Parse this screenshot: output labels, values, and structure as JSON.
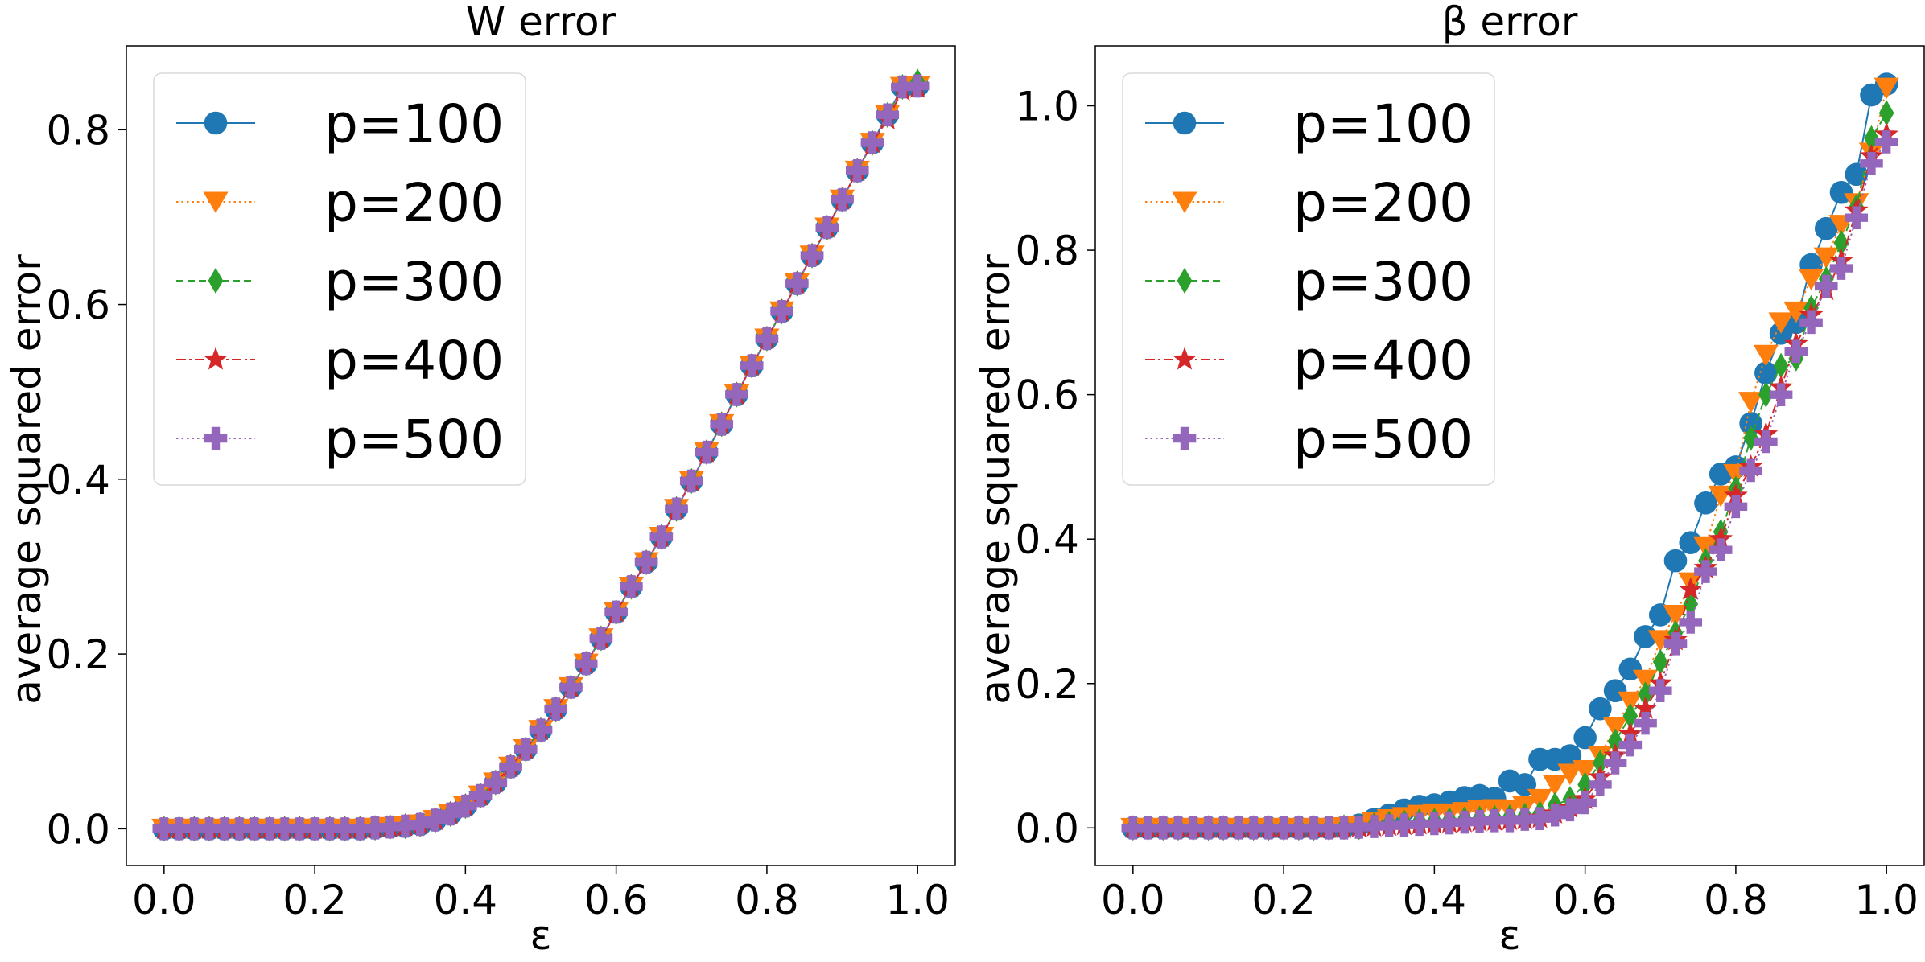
{
  "chart_data": [
    {
      "type": "line",
      "title": "W error",
      "xlabel": "ε",
      "ylabel": "average squared error",
      "xlim": [
        -0.05,
        1.05
      ],
      "ylim": [
        -0.042,
        0.896
      ],
      "xticks": [
        0.0,
        0.2,
        0.4,
        0.6,
        0.8,
        1.0
      ],
      "xtick_labels": [
        "0.0",
        "0.2",
        "0.4",
        "0.6",
        "0.8",
        "1.0"
      ],
      "yticks": [
        0.0,
        0.2,
        0.4,
        0.6,
        0.8
      ],
      "ytick_labels": [
        "0.0",
        "0.2",
        "0.4",
        "0.6",
        "0.8"
      ],
      "grid": false,
      "legend_position": "upper left",
      "x": [
        0.0,
        0.02,
        0.04,
        0.06,
        0.08,
        0.1,
        0.12,
        0.14,
        0.16,
        0.18,
        0.2,
        0.22,
        0.24,
        0.26,
        0.28,
        0.3,
        0.32,
        0.34,
        0.36,
        0.38,
        0.4,
        0.42,
        0.44,
        0.46,
        0.48,
        0.5,
        0.52,
        0.54,
        0.56,
        0.58,
        0.6,
        0.62,
        0.64,
        0.66,
        0.68,
        0.7,
        0.72,
        0.74,
        0.76,
        0.78,
        0.8,
        0.82,
        0.84,
        0.86,
        0.88,
        0.9,
        0.92,
        0.94,
        0.96,
        0.98,
        1.0
      ],
      "series": [
        {
          "name": "p=100",
          "values": [
            0,
            0,
            0,
            0,
            0,
            0,
            0,
            0,
            0,
            0,
            0,
            0,
            0,
            0,
            0.001,
            0.002,
            0.003,
            0.005,
            0.01,
            0.017,
            0.026,
            0.038,
            0.053,
            0.071,
            0.091,
            0.113,
            0.137,
            0.162,
            0.189,
            0.218,
            0.248,
            0.277,
            0.305,
            0.334,
            0.366,
            0.398,
            0.431,
            0.463,
            0.497,
            0.53,
            0.561,
            0.592,
            0.624,
            0.656,
            0.688,
            0.72,
            0.753,
            0.785,
            0.817,
            0.849,
            0.85
          ]
        },
        {
          "name": "p=200",
          "values": [
            0,
            0,
            0,
            0,
            0,
            0,
            0,
            0,
            0,
            0,
            0,
            0,
            0,
            0,
            0.001,
            0.002,
            0.003,
            0.005,
            0.01,
            0.017,
            0.026,
            0.038,
            0.053,
            0.071,
            0.091,
            0.113,
            0.137,
            0.162,
            0.189,
            0.218,
            0.248,
            0.277,
            0.305,
            0.334,
            0.366,
            0.398,
            0.431,
            0.463,
            0.497,
            0.53,
            0.561,
            0.592,
            0.624,
            0.656,
            0.688,
            0.72,
            0.753,
            0.785,
            0.817,
            0.849,
            0.85
          ]
        },
        {
          "name": "p=300",
          "values": [
            0,
            0,
            0,
            0,
            0,
            0,
            0,
            0,
            0,
            0,
            0,
            0,
            0,
            0,
            0.001,
            0.002,
            0.003,
            0.005,
            0.01,
            0.017,
            0.026,
            0.038,
            0.053,
            0.071,
            0.091,
            0.113,
            0.137,
            0.162,
            0.189,
            0.218,
            0.248,
            0.277,
            0.305,
            0.334,
            0.366,
            0.398,
            0.431,
            0.463,
            0.497,
            0.53,
            0.561,
            0.592,
            0.624,
            0.656,
            0.688,
            0.72,
            0.753,
            0.785,
            0.817,
            0.849,
            0.855
          ]
        },
        {
          "name": "p=400",
          "values": [
            0,
            0,
            0,
            0,
            0,
            0,
            0,
            0,
            0,
            0,
            0,
            0,
            0,
            0,
            0.001,
            0.002,
            0.003,
            0.005,
            0.01,
            0.017,
            0.026,
            0.038,
            0.053,
            0.071,
            0.091,
            0.113,
            0.137,
            0.162,
            0.189,
            0.218,
            0.248,
            0.277,
            0.305,
            0.334,
            0.366,
            0.398,
            0.431,
            0.463,
            0.497,
            0.53,
            0.561,
            0.592,
            0.624,
            0.656,
            0.688,
            0.72,
            0.753,
            0.785,
            0.812,
            0.845,
            0.848
          ]
        },
        {
          "name": "p=500",
          "values": [
            0,
            0,
            0,
            0,
            0,
            0,
            0,
            0,
            0,
            0,
            0,
            0,
            0,
            0,
            0.001,
            0.002,
            0.003,
            0.005,
            0.01,
            0.017,
            0.026,
            0.038,
            0.053,
            0.071,
            0.091,
            0.113,
            0.137,
            0.162,
            0.189,
            0.218,
            0.248,
            0.277,
            0.305,
            0.334,
            0.366,
            0.398,
            0.431,
            0.463,
            0.497,
            0.53,
            0.561,
            0.592,
            0.624,
            0.656,
            0.688,
            0.72,
            0.753,
            0.785,
            0.817,
            0.849,
            0.85
          ]
        }
      ]
    },
    {
      "type": "line",
      "title": "β error",
      "xlabel": "ε",
      "ylabel": "average squared error",
      "xlim": [
        -0.05,
        1.05
      ],
      "ylim": [
        -0.052,
        1.083
      ],
      "xticks": [
        0.0,
        0.2,
        0.4,
        0.6,
        0.8,
        1.0
      ],
      "xtick_labels": [
        "0.0",
        "0.2",
        "0.4",
        "0.6",
        "0.8",
        "1.0"
      ],
      "yticks": [
        0.0,
        0.2,
        0.4,
        0.6,
        0.8,
        1.0
      ],
      "ytick_labels": [
        "0.0",
        "0.2",
        "0.4",
        "0.6",
        "0.8",
        "1.0"
      ],
      "grid": false,
      "legend_position": "upper left",
      "x": [
        0.0,
        0.02,
        0.04,
        0.06,
        0.08,
        0.1,
        0.12,
        0.14,
        0.16,
        0.18,
        0.2,
        0.22,
        0.24,
        0.26,
        0.28,
        0.3,
        0.32,
        0.34,
        0.36,
        0.38,
        0.4,
        0.42,
        0.44,
        0.46,
        0.48,
        0.5,
        0.52,
        0.54,
        0.56,
        0.58,
        0.6,
        0.62,
        0.64,
        0.66,
        0.68,
        0.7,
        0.72,
        0.74,
        0.76,
        0.78,
        0.8,
        0.82,
        0.84,
        0.86,
        0.88,
        0.9,
        0.92,
        0.94,
        0.96,
        0.98,
        1.0
      ],
      "series": [
        {
          "name": "p=100",
          "values": [
            0,
            0,
            0,
            0,
            0,
            0,
            0,
            0,
            0,
            0,
            0,
            0,
            0,
            0,
            0.001,
            0.004,
            0.012,
            0.018,
            0.025,
            0.03,
            0.032,
            0.036,
            0.042,
            0.045,
            0.041,
            0.065,
            0.06,
            0.095,
            0.095,
            0.1,
            0.125,
            0.165,
            0.19,
            0.22,
            0.265,
            0.295,
            0.37,
            0.395,
            0.45,
            0.49,
            0.5,
            0.56,
            0.63,
            0.685,
            0.7,
            0.78,
            0.83,
            0.88,
            0.905,
            1.015,
            1.03
          ]
        },
        {
          "name": "p=200",
          "values": [
            0,
            0,
            0,
            0,
            0,
            0,
            0,
            0,
            0,
            0,
            0,
            0,
            0,
            0,
            0.001,
            0.002,
            0.008,
            0.012,
            0.015,
            0.018,
            0.02,
            0.02,
            0.022,
            0.025,
            0.026,
            0.025,
            0.03,
            0.04,
            0.06,
            0.075,
            0.08,
            0.1,
            0.14,
            0.175,
            0.205,
            0.26,
            0.295,
            0.34,
            0.39,
            0.46,
            0.49,
            0.59,
            0.655,
            0.7,
            0.715,
            0.76,
            0.79,
            0.835,
            0.865,
            0.935,
            1.025
          ]
        },
        {
          "name": "p=300",
          "values": [
            0,
            0,
            0,
            0,
            0,
            0,
            0,
            0,
            0,
            0,
            0,
            0,
            0,
            0,
            0.001,
            0.001,
            0.004,
            0.006,
            0.008,
            0.009,
            0.01,
            0.011,
            0.012,
            0.013,
            0.014,
            0.015,
            0.017,
            0.02,
            0.032,
            0.04,
            0.06,
            0.09,
            0.12,
            0.155,
            0.185,
            0.23,
            0.27,
            0.31,
            0.37,
            0.41,
            0.47,
            0.54,
            0.6,
            0.64,
            0.65,
            0.72,
            0.76,
            0.81,
            0.86,
            0.955,
            0.99
          ]
        },
        {
          "name": "p=400",
          "values": [
            0,
            0,
            0,
            0,
            0,
            0,
            0,
            0,
            0,
            0,
            0,
            0,
            0,
            0,
            0,
            0.001,
            0.002,
            0.003,
            0.004,
            0.005,
            0.006,
            0.007,
            0.008,
            0.009,
            0.01,
            0.011,
            0.012,
            0.014,
            0.02,
            0.028,
            0.04,
            0.07,
            0.1,
            0.13,
            0.165,
            0.2,
            0.26,
            0.33,
            0.36,
            0.4,
            0.46,
            0.5,
            0.545,
            0.61,
            0.67,
            0.71,
            0.745,
            0.785,
            0.855,
            0.93,
            0.96
          ]
        },
        {
          "name": "p=500",
          "values": [
            0,
            0,
            0,
            0,
            0,
            0,
            0,
            0,
            0,
            0,
            0,
            0,
            0,
            0,
            0,
            0.001,
            0.002,
            0.003,
            0.004,
            0.005,
            0.006,
            0.007,
            0.008,
            0.009,
            0.01,
            0.01,
            0.012,
            0.013,
            0.018,
            0.025,
            0.035,
            0.06,
            0.09,
            0.115,
            0.145,
            0.19,
            0.255,
            0.285,
            0.355,
            0.385,
            0.445,
            0.495,
            0.535,
            0.6,
            0.66,
            0.7,
            0.75,
            0.775,
            0.845,
            0.92,
            0.95
          ]
        }
      ]
    }
  ],
  "styles": {
    "series_colors": [
      "#1f77b4",
      "#ff7f0e",
      "#2ca02c",
      "#d62728",
      "#9467bd"
    ],
    "line_styles": [
      "solid",
      "dotted",
      "dashed",
      "dashdot",
      "dotted"
    ],
    "markers": [
      "circle",
      "triangle-down",
      "thin-diamond",
      "star",
      "plus-filled"
    ]
  }
}
